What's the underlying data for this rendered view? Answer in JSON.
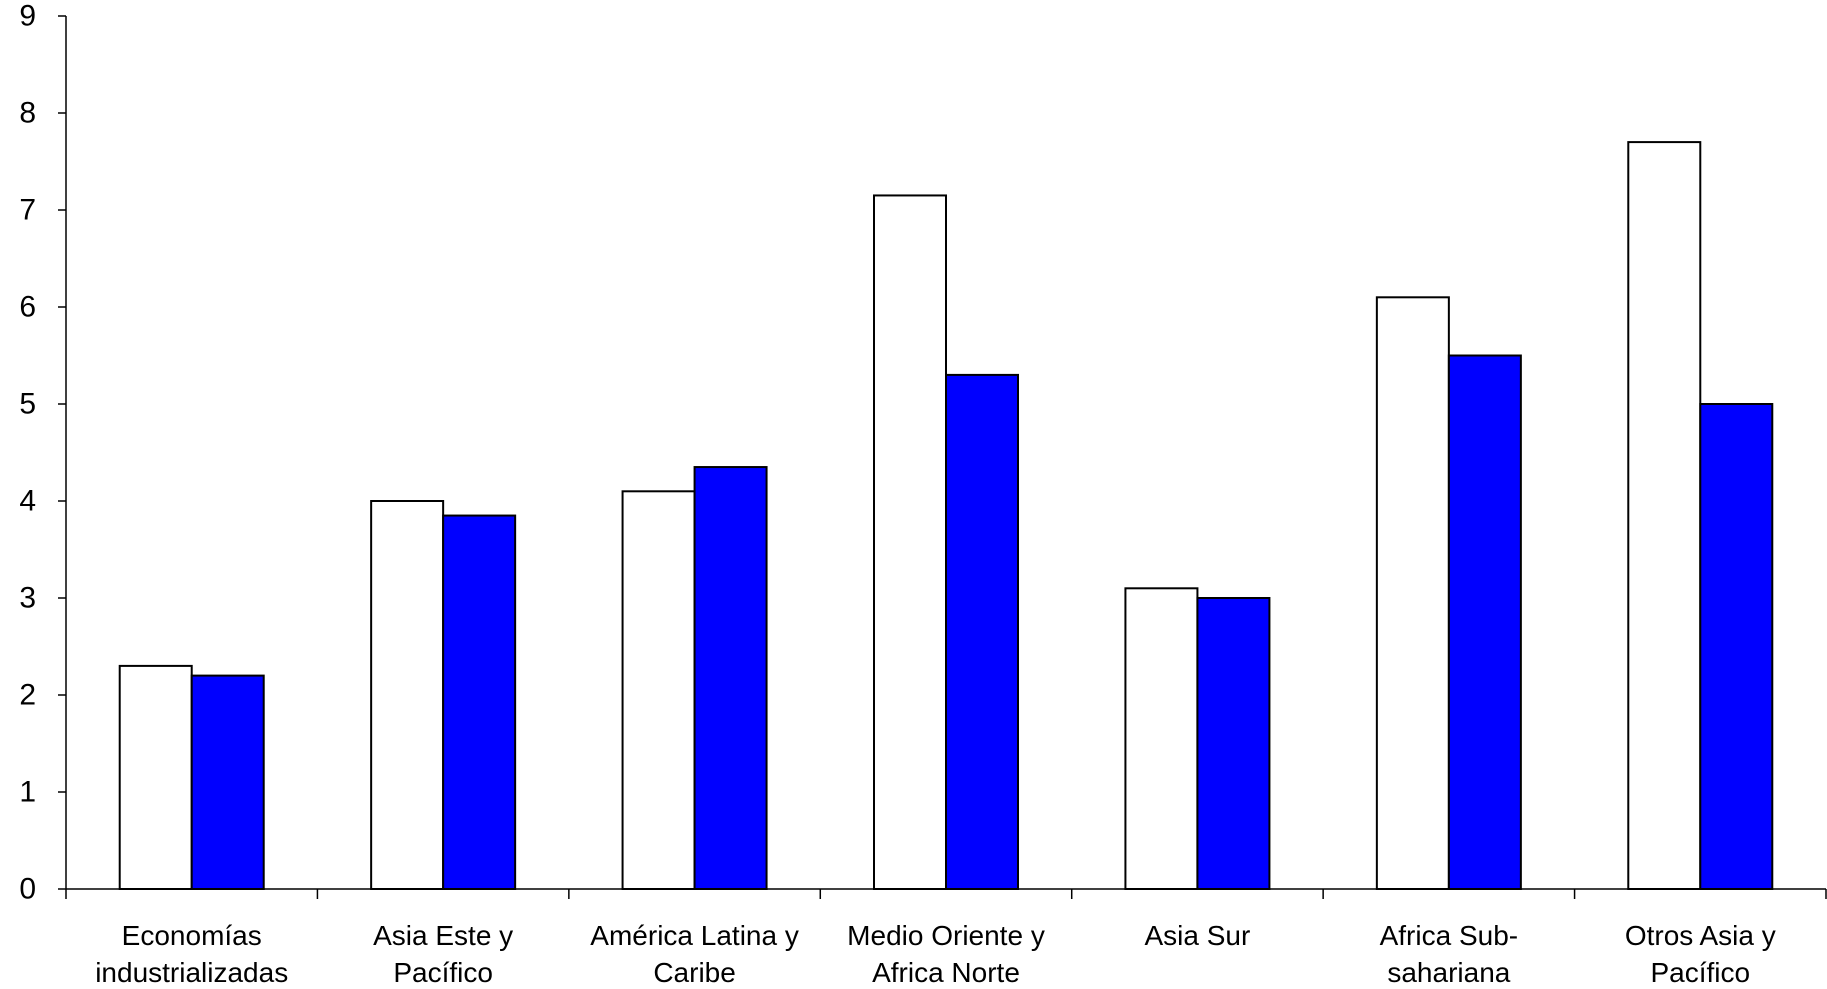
{
  "chart_data": {
    "type": "bar",
    "title": "",
    "xlabel": "",
    "ylabel": "",
    "ylim": [
      0,
      9
    ],
    "yticks": [
      "0",
      "1",
      "2",
      "3",
      "4",
      "5",
      "6",
      "7",
      "8",
      "9"
    ],
    "grid": false,
    "categories": [
      [
        "Economías",
        "industrializadas"
      ],
      [
        "Asia Este y",
        "Pacífico"
      ],
      [
        "América Latina y",
        "Caribe"
      ],
      [
        "Medio Oriente y",
        "Africa Norte"
      ],
      [
        "Asia Sur"
      ],
      [
        "Africa Sub-",
        "sahariana"
      ],
      [
        "Otros Asia y",
        "Pacífico"
      ]
    ],
    "series": [
      {
        "color": "#ffffff",
        "values": [
          2.3,
          4.0,
          4.1,
          7.15,
          3.1,
          6.1,
          7.7
        ]
      },
      {
        "color": "#0000ff",
        "values": [
          2.2,
          3.85,
          4.35,
          5.3,
          3.0,
          5.5,
          5.0
        ]
      }
    ]
  }
}
